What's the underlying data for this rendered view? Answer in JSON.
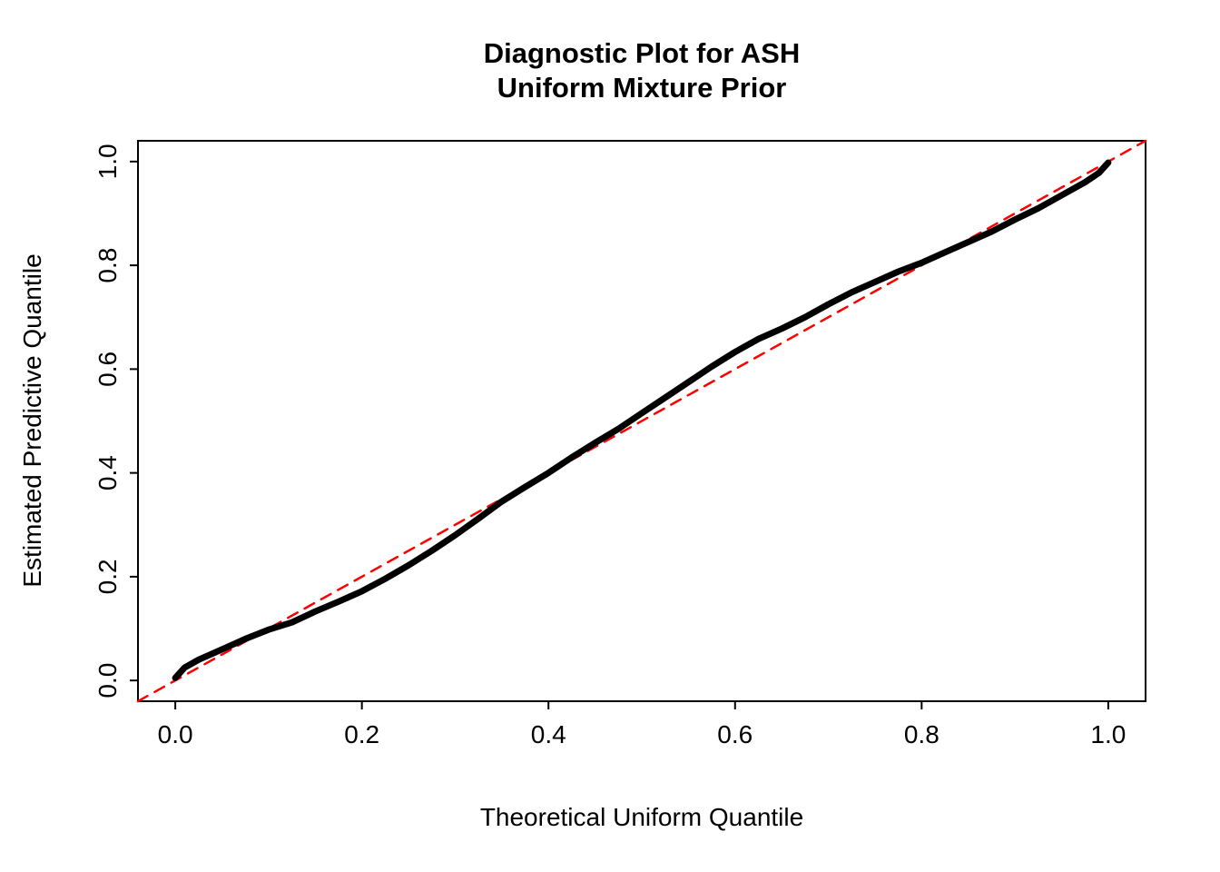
{
  "page": {
    "background_color": "#ffffff",
    "foreground_color": "#000000"
  },
  "chart_data": {
    "type": "line",
    "title_line1": "Diagnostic Plot for ASH",
    "title_line2": "Uniform Mixture Prior",
    "xlabel": "Theoretical Uniform Quantile",
    "ylabel": "Estimated Predictive Quantile",
    "xlim": [
      -0.04,
      1.04
    ],
    "ylim": [
      -0.04,
      1.04
    ],
    "grid": false,
    "legend": "none",
    "x_tick_values": [
      0.0,
      0.2,
      0.4,
      0.6,
      0.8,
      1.0
    ],
    "x_tick_labels": [
      "0.0",
      "0.2",
      "0.4",
      "0.6",
      "0.8",
      "1.0"
    ],
    "y_tick_values": [
      0.0,
      0.2,
      0.4,
      0.6,
      0.8,
      1.0
    ],
    "y_tick_labels": [
      "0.0",
      "0.2",
      "0.4",
      "0.6",
      "0.8",
      "1.0"
    ],
    "series": [
      {
        "name": "reference-diagonal",
        "color": "#FF0000",
        "style": "dashed",
        "width": 2.5,
        "points": [
          [
            -0.04,
            -0.04
          ],
          [
            1.04,
            1.04
          ]
        ]
      },
      {
        "name": "estimated-quantiles",
        "color": "#000000",
        "style": "thick-solid",
        "width": 7,
        "points": [
          [
            0.0,
            0.005
          ],
          [
            0.005,
            0.015
          ],
          [
            0.01,
            0.025
          ],
          [
            0.025,
            0.04
          ],
          [
            0.05,
            0.06
          ],
          [
            0.075,
            0.08
          ],
          [
            0.1,
            0.098
          ],
          [
            0.125,
            0.112
          ],
          [
            0.15,
            0.133
          ],
          [
            0.175,
            0.152
          ],
          [
            0.2,
            0.172
          ],
          [
            0.225,
            0.196
          ],
          [
            0.25,
            0.222
          ],
          [
            0.275,
            0.25
          ],
          [
            0.3,
            0.28
          ],
          [
            0.325,
            0.312
          ],
          [
            0.35,
            0.345
          ],
          [
            0.375,
            0.373
          ],
          [
            0.4,
            0.4
          ],
          [
            0.425,
            0.43
          ],
          [
            0.45,
            0.458
          ],
          [
            0.475,
            0.485
          ],
          [
            0.5,
            0.515
          ],
          [
            0.525,
            0.545
          ],
          [
            0.55,
            0.575
          ],
          [
            0.575,
            0.605
          ],
          [
            0.6,
            0.633
          ],
          [
            0.625,
            0.658
          ],
          [
            0.65,
            0.678
          ],
          [
            0.675,
            0.7
          ],
          [
            0.7,
            0.725
          ],
          [
            0.725,
            0.748
          ],
          [
            0.75,
            0.768
          ],
          [
            0.775,
            0.788
          ],
          [
            0.8,
            0.805
          ],
          [
            0.825,
            0.825
          ],
          [
            0.85,
            0.845
          ],
          [
            0.875,
            0.865
          ],
          [
            0.9,
            0.888
          ],
          [
            0.925,
            0.91
          ],
          [
            0.95,
            0.935
          ],
          [
            0.975,
            0.96
          ],
          [
            0.99,
            0.978
          ],
          [
            1.0,
            0.998
          ]
        ]
      }
    ]
  }
}
